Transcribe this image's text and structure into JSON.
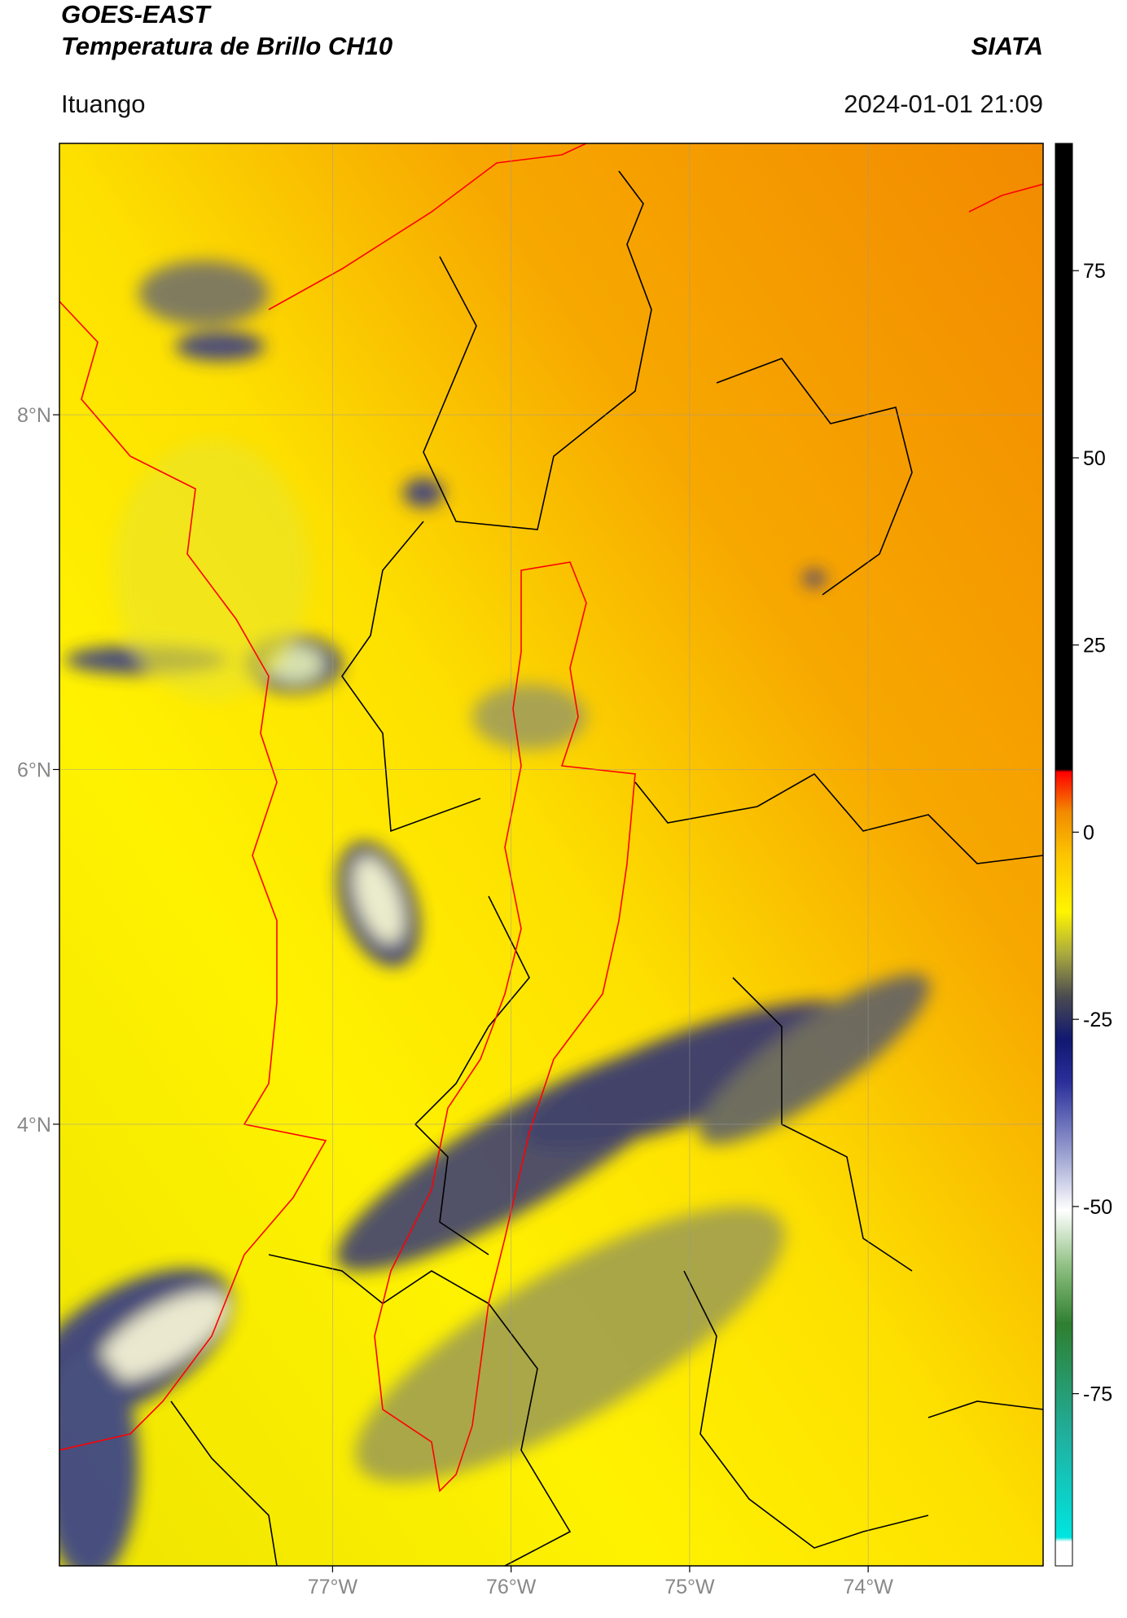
{
  "header": {
    "title": "GOES-EAST",
    "subtitle": "Temperatura de Brillo CH10",
    "organization": "SIATA",
    "region": "Ituango",
    "datetime": "2024-01-01 21:09"
  },
  "map": {
    "xlim": [
      -78.53,
      -73.02
    ],
    "ylim": [
      1.51,
      9.53
    ],
    "xticks": [
      {
        "value": -77,
        "label": "77°W"
      },
      {
        "value": -76,
        "label": "76°W"
      },
      {
        "value": -75,
        "label": "75°W"
      },
      {
        "value": -74,
        "label": "74°W"
      }
    ],
    "yticks": [
      {
        "value": 8,
        "label": "8°N"
      },
      {
        "value": 6,
        "label": "6°N"
      },
      {
        "value": 4,
        "label": "4°N"
      }
    ],
    "grid": true
  },
  "colorbar": {
    "lim": [
      -98,
      92
    ],
    "ticks": [
      75,
      50,
      25,
      0,
      -25,
      -50,
      -75
    ]
  }
}
